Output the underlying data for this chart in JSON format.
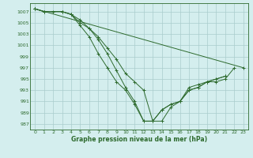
{
  "title": "Graphe pression niveau de la mer (hPa)",
  "bg_color": "#d4eeee",
  "grid_color": "#aacccc",
  "line_color": "#2d6a2d",
  "xlim": [
    -0.5,
    23.5
  ],
  "ylim": [
    986.0,
    1008.5
  ],
  "yticks": [
    987,
    989,
    991,
    993,
    995,
    997,
    999,
    1001,
    1003,
    1005,
    1007
  ],
  "xticks": [
    0,
    1,
    2,
    3,
    4,
    5,
    6,
    7,
    8,
    9,
    10,
    11,
    12,
    13,
    14,
    15,
    16,
    17,
    18,
    19,
    20,
    21,
    22,
    23
  ],
  "series": [
    {
      "x": [
        0,
        1,
        3,
        4,
        5,
        6,
        7,
        8,
        9,
        10,
        11,
        12,
        13,
        14,
        15,
        16,
        17,
        18,
        19,
        20,
        21
      ],
      "y": [
        1007.5,
        1007.0,
        1007.0,
        1006.5,
        1004.5,
        1002.5,
        999.5,
        997.0,
        994.5,
        993.0,
        990.5,
        987.5,
        987.5,
        989.5,
        990.5,
        991.0,
        993.5,
        994.0,
        994.5,
        995.0,
        995.5
      ]
    },
    {
      "x": [
        0,
        1,
        2,
        3,
        4,
        5,
        6,
        7,
        8,
        9,
        10,
        11,
        12,
        13,
        14,
        15,
        16,
        17,
        18,
        19,
        20,
        21
      ],
      "y": [
        1007.5,
        1007.0,
        1007.0,
        1007.0,
        1006.5,
        1005.5,
        1004.0,
        1002.0,
        999.5,
        996.5,
        993.5,
        991.0,
        987.5,
        987.5,
        989.5,
        990.5,
        991.0,
        993.0,
        993.5,
        994.5,
        995.0,
        995.5
      ]
    },
    {
      "x": [
        0,
        1,
        3,
        4,
        5,
        6,
        7,
        8,
        9,
        10,
        11,
        12,
        13,
        14,
        15,
        16,
        17,
        18,
        19,
        20,
        21,
        22
      ],
      "y": [
        1007.5,
        1007.0,
        1007.0,
        1006.5,
        1005.0,
        1004.0,
        1002.5,
        1000.5,
        998.5,
        996.0,
        994.5,
        993.0,
        987.5,
        987.5,
        990.0,
        991.0,
        993.0,
        993.5,
        994.5,
        994.5,
        995.0,
        997.0
      ]
    },
    {
      "x": [
        0,
        23
      ],
      "y": [
        1007.5,
        997.0
      ]
    }
  ]
}
